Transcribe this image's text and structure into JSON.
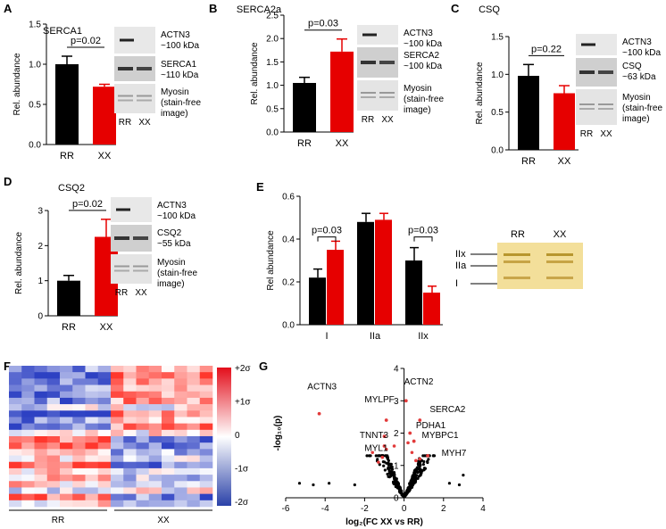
{
  "panels": [
    {
      "id": "A",
      "letter": "A",
      "title": "SERCA1",
      "ylabel": "Rel. abundance",
      "yticks": [
        "0.0",
        "0.5",
        "1.0",
        "1.5"
      ],
      "categories": [
        "RR",
        "XX"
      ],
      "values": [
        1.0,
        0.72
      ],
      "errors": [
        0.1,
        0.03
      ],
      "pvalue": "p=0.02",
      "blot_labels": [
        {
          "name": "ACTN3",
          "size": "~100 kDa"
        },
        {
          "name": "SERCA1",
          "size": "~110 kDa"
        },
        {
          "name": "Myosin",
          "size": "(stain-free",
          "extra": "image)"
        }
      ],
      "lane_labels": [
        "RR",
        "XX"
      ]
    },
    {
      "id": "B",
      "letter": "B",
      "title": "SERCA2a",
      "ylabel": "Rel. abundance",
      "yticks": [
        "0.0",
        "0.5",
        "1.0",
        "1.5",
        "2.0",
        "2.5"
      ],
      "categories": [
        "RR",
        "XX"
      ],
      "values": [
        1.05,
        1.72
      ],
      "errors": [
        0.12,
        0.27
      ],
      "pvalue": "p=0.03",
      "blot_labels": [
        {
          "name": "ACTN3",
          "size": "~100 kDa"
        },
        {
          "name": "SERCA2",
          "size": "~100 kDa"
        },
        {
          "name": "Myosin",
          "size": "(stain-free",
          "extra": "image)"
        }
      ],
      "lane_labels": [
        "RR",
        "XX"
      ]
    },
    {
      "id": "C",
      "letter": "C",
      "title": "CSQ",
      "ylabel": "Rel. abundance",
      "yticks": [
        "0.0",
        "0.5",
        "1.0",
        "1.5"
      ],
      "categories": [
        "RR",
        "XX"
      ],
      "values": [
        0.98,
        0.75
      ],
      "errors": [
        0.15,
        0.1
      ],
      "pvalue": "p=0.22",
      "blot_labels": [
        {
          "name": "ACTN3",
          "size": "~100 kDa"
        },
        {
          "name": "CSQ",
          "size": "~63 kDa"
        },
        {
          "name": "Myosin",
          "size": "(stain-free",
          "extra": "image)"
        }
      ],
      "lane_labels": [
        "RR",
        "XX"
      ]
    },
    {
      "id": "D",
      "letter": "D",
      "title": "CSQ2",
      "ylabel": "Rel. abundance",
      "yticks": [
        "0",
        "1",
        "2",
        "3"
      ],
      "categories": [
        "RR",
        "XX"
      ],
      "values": [
        1.0,
        2.25
      ],
      "errors": [
        0.15,
        0.5
      ],
      "pvalue": "p=0.02",
      "blot_labels": [
        {
          "name": "ACTN3",
          "size": "~100 kDa"
        },
        {
          "name": "CSQ2",
          "size": "~55 kDa"
        },
        {
          "name": "Myosin",
          "size": "(stain-free",
          "extra": "image)"
        }
      ],
      "lane_labels": [
        "RR",
        "XX"
      ]
    }
  ],
  "panel_e": {
    "letter": "E",
    "ylabel": "Rel abundance",
    "yticks": [
      "0.0",
      "0.2",
      "0.4",
      "0.6"
    ],
    "categories": [
      "I",
      "IIa",
      "IIx"
    ],
    "rr_values": [
      0.22,
      0.48,
      0.3
    ],
    "rr_errors": [
      0.04,
      0.04,
      0.06
    ],
    "xx_values": [
      0.35,
      0.49,
      0.15
    ],
    "xx_errors": [
      0.04,
      0.03,
      0.03
    ],
    "pvalues": [
      "p=0.03",
      "p=0.03"
    ],
    "gel_lanes": [
      "RR",
      "XX"
    ],
    "gel_bands": [
      "IIx",
      "IIa",
      "I"
    ]
  },
  "panel_f": {
    "letter": "F",
    "scale_labels": [
      "+2σ",
      "+1σ",
      "0",
      "-1σ",
      "-2σ"
    ],
    "groups": [
      "RR",
      "XX"
    ]
  },
  "panel_g": {
    "letter": "G",
    "ylabel": "-log₁₀(p)",
    "xlabel": "log₂(FC XX vs RR)",
    "xticks": [
      "-6",
      "-4",
      "-2",
      "0",
      "2",
      "4"
    ],
    "yticks": [
      "0",
      "1",
      "2",
      "3",
      "4"
    ],
    "labeled_points": [
      {
        "name": "ACTN3",
        "x": -4.3,
        "y": 2.6
      },
      {
        "name": "ACTN2",
        "x": 0.1,
        "y": 3.0
      },
      {
        "name": "MYLPF",
        "x": -0.9,
        "y": 2.4
      },
      {
        "name": "SERCA2",
        "x": 0.8,
        "y": 2.4
      },
      {
        "name": "PDHA1",
        "x": 0.3,
        "y": 2.0
      },
      {
        "name": "TNNT3",
        "x": -1.0,
        "y": 1.9
      },
      {
        "name": "MYBPC1",
        "x": 0.5,
        "y": 1.75
      },
      {
        "name": "MYL1",
        "x": -1.0,
        "y": 1.6
      },
      {
        "name": "MYH7",
        "x": 1.2,
        "y": 1.3
      }
    ]
  },
  "colors": {
    "rr": "#000000",
    "xx": "#e60000",
    "heat_high": "#d7191c",
    "heat_low": "#2c3e9e"
  }
}
